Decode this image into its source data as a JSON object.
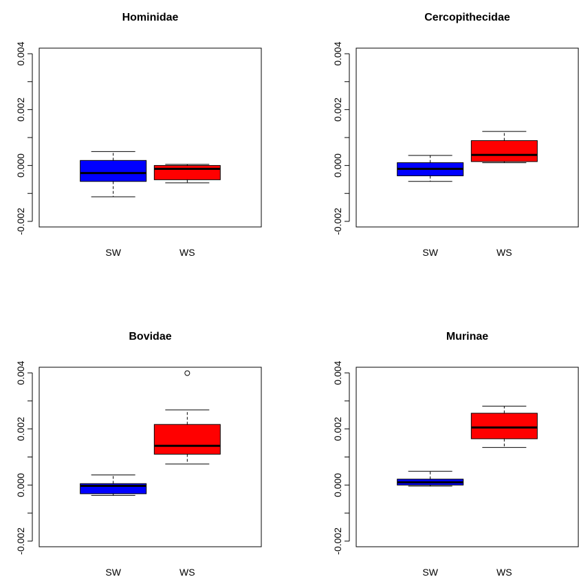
{
  "chart_data": [
    {
      "type": "box",
      "title": "Hominidae",
      "categories": [
        "SW",
        "WS"
      ],
      "ylim": [
        -0.0022,
        0.0042
      ],
      "yticks": [
        -0.002,
        0.0,
        0.002,
        0.004
      ],
      "ytick_labels": [
        "-0.002",
        "0.000",
        "0.002",
        "0.004"
      ],
      "boxes": [
        {
          "group": "SW",
          "fill": "#0000FF",
          "min": -0.00112,
          "q1": -0.00057,
          "median": -0.00027,
          "q3": 0.00018,
          "max": 0.0005,
          "outliers": []
        },
        {
          "group": "WS",
          "fill": "#FF0000",
          "min": -0.00062,
          "q1": -0.00051,
          "median": -0.00012,
          "q3": 0.0,
          "max": 4e-05,
          "outliers": []
        }
      ]
    },
    {
      "type": "box",
      "title": "Cercopithecidae",
      "categories": [
        "SW",
        "WS"
      ],
      "ylim": [
        -0.0022,
        0.0042
      ],
      "yticks": [
        -0.002,
        0.0,
        0.002,
        0.004
      ],
      "ytick_labels": [
        "-0.002",
        "0.000",
        "0.002",
        "0.004"
      ],
      "boxes": [
        {
          "group": "SW",
          "fill": "#0000FF",
          "min": -0.00057,
          "q1": -0.00037,
          "median": -0.00012,
          "q3": 0.0001,
          "max": 0.00036,
          "outliers": []
        },
        {
          "group": "WS",
          "fill": "#FF0000",
          "min": 0.0001,
          "q1": 0.00014,
          "median": 0.00038,
          "q3": 0.00089,
          "max": 0.00122,
          "outliers": []
        }
      ]
    },
    {
      "type": "box",
      "title": "Bovidae",
      "categories": [
        "SW",
        "WS"
      ],
      "ylim": [
        -0.0022,
        0.0042
      ],
      "yticks": [
        -0.002,
        0.0,
        0.002,
        0.004
      ],
      "ytick_labels": [
        "-0.002",
        "0.000",
        "0.002",
        "0.004"
      ],
      "boxes": [
        {
          "group": "SW",
          "fill": "#0000FF",
          "min": -0.00037,
          "q1": -0.00031,
          "median": -3e-05,
          "q3": 5e-05,
          "max": 0.00036,
          "outliers": []
        },
        {
          "group": "WS",
          "fill": "#FF0000",
          "min": 0.00075,
          "q1": 0.0011,
          "median": 0.0014,
          "q3": 0.00216,
          "max": 0.00268,
          "outliers": [
            0.00399
          ]
        }
      ]
    },
    {
      "type": "box",
      "title": "Murinae",
      "categories": [
        "SW",
        "WS"
      ],
      "ylim": [
        -0.0022,
        0.0042
      ],
      "yticks": [
        -0.002,
        0.0,
        0.002,
        0.004
      ],
      "ytick_labels": [
        "-0.002",
        "0.000",
        "0.002",
        "0.004"
      ],
      "boxes": [
        {
          "group": "SW",
          "fill": "#0000FF",
          "min": -4e-05,
          "q1": 0.0,
          "median": 0.0001,
          "q3": 0.00021,
          "max": 0.00049,
          "outliers": []
        },
        {
          "group": "WS",
          "fill": "#FF0000",
          "min": 0.00134,
          "q1": 0.00165,
          "median": 0.00205,
          "q3": 0.00256,
          "max": 0.00281,
          "outliers": []
        }
      ]
    }
  ]
}
